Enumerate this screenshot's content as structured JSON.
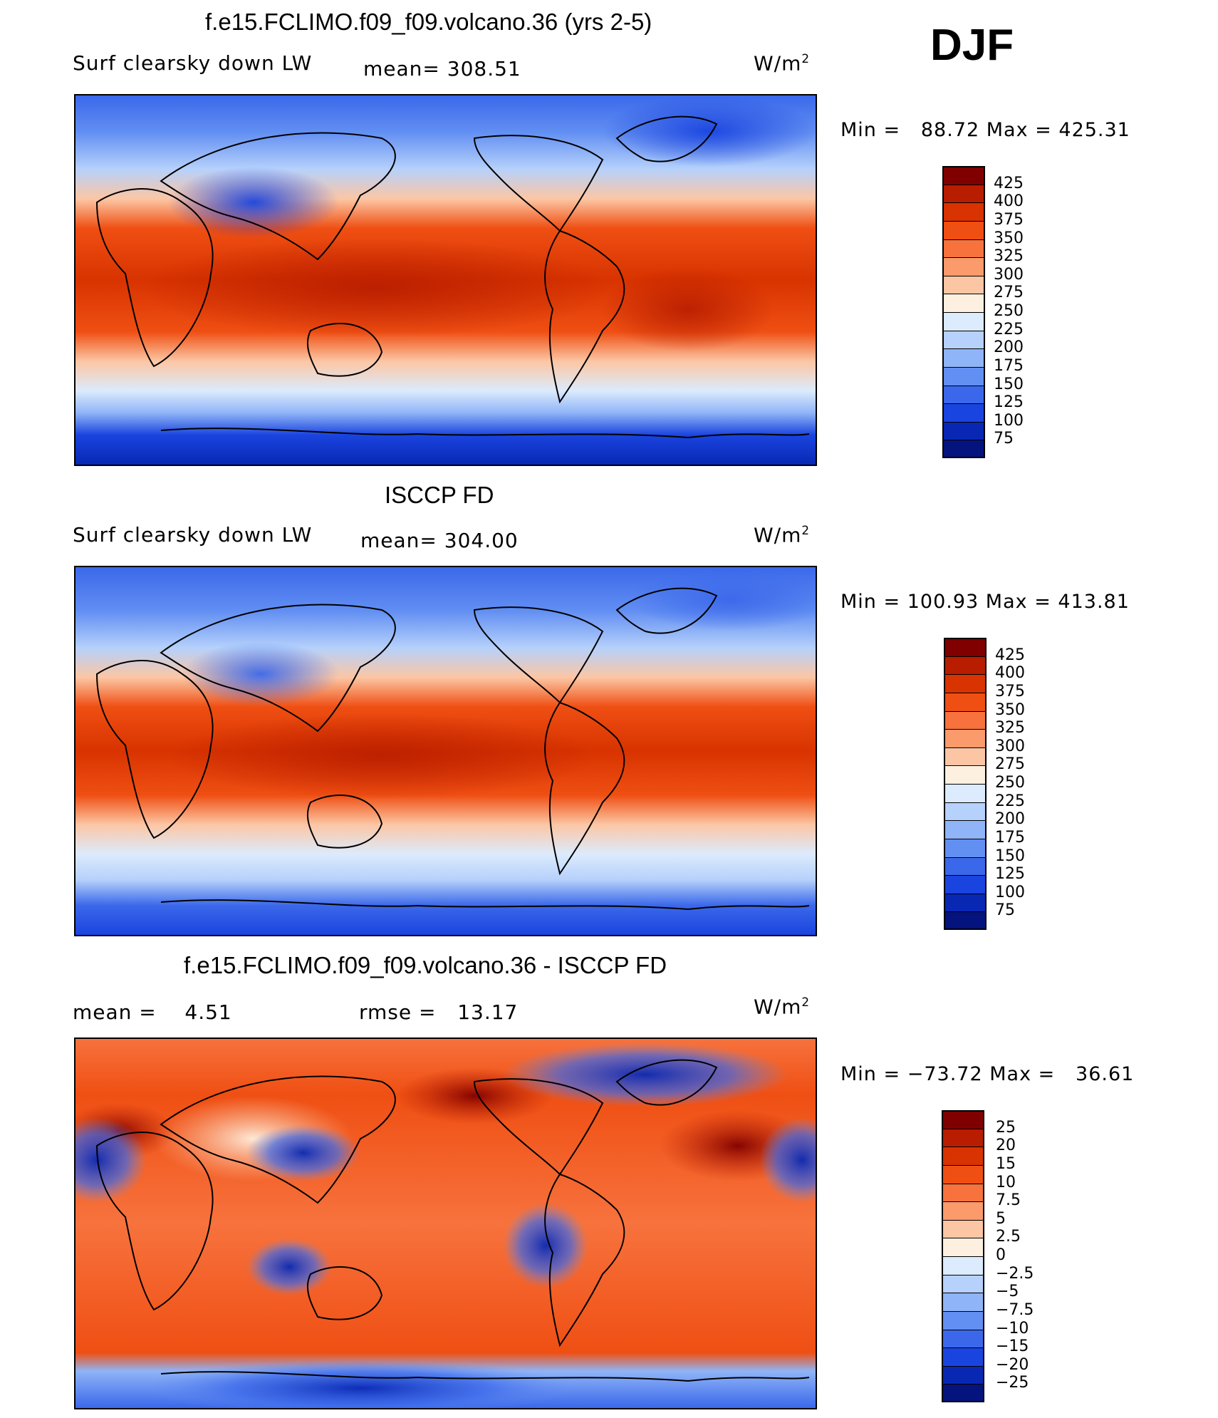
{
  "season": "DJF",
  "panel1": {
    "title": "f.e15.FCLIMO.f09_f09.volcano.36 (yrs 2-5)",
    "variable": "Surf clearsky down LW",
    "mean_text": "mean= 308.51",
    "units_base": "W/m",
    "units_exp": "2",
    "min_label": "Min =",
    "min_value": "88.72",
    "max_label": "Max =",
    "max_value": "425.31"
  },
  "panel2": {
    "title": "ISCCP FD",
    "variable": "Surf clearsky down LW",
    "mean_text": "mean= 304.00",
    "units_base": "W/m",
    "units_exp": "2",
    "min_label": "Min =",
    "min_value": "100.93",
    "max_label": "Max =",
    "max_value": "413.81"
  },
  "panel3": {
    "title": "f.e15.FCLIMO.f09_f09.volcano.36 - ISCCP FD",
    "mean_label": "mean =",
    "mean_value": "4.51",
    "rmse_label": "rmse =",
    "rmse_value": "13.17",
    "units_base": "W/m",
    "units_exp": "2",
    "min_label": "Min =",
    "min_value": "−73.72",
    "max_label": "Max =",
    "max_value": "36.61"
  },
  "colorbar_abs": {
    "labels": [
      "425",
      "400",
      "375",
      "350",
      "325",
      "300",
      "275",
      "250",
      "225",
      "200",
      "175",
      "150",
      "125",
      "100",
      "75"
    ],
    "colors": [
      "#800000",
      "#b81d00",
      "#d83300",
      "#ef4f13",
      "#f7723d",
      "#fb9a6b",
      "#fcc6a4",
      "#fef0e0",
      "#dcebfd",
      "#b6d1fb",
      "#8fb4f7",
      "#628ff2",
      "#3b68ea",
      "#1a44df",
      "#0828b4",
      "#04137d"
    ]
  },
  "colorbar_diff": {
    "labels": [
      "25",
      "20",
      "15",
      "10",
      "7.5",
      "5",
      "2.5",
      "0",
      "−2.5",
      "−5",
      "−7.5",
      "−10",
      "−15",
      "−20",
      "−25"
    ],
    "colors": [
      "#800000",
      "#b81d00",
      "#d83300",
      "#ef4f13",
      "#f7723d",
      "#fb9a6b",
      "#fcc6a4",
      "#fef0e0",
      "#dcebfd",
      "#b6d1fb",
      "#8fb4f7",
      "#628ff2",
      "#3b68ea",
      "#1a44df",
      "#0828b4",
      "#04137d"
    ]
  },
  "map_data": {
    "projection": "cylindrical equidistant",
    "longitude_range": [
      0,
      360
    ],
    "latitude_range": [
      -90,
      90
    ]
  }
}
